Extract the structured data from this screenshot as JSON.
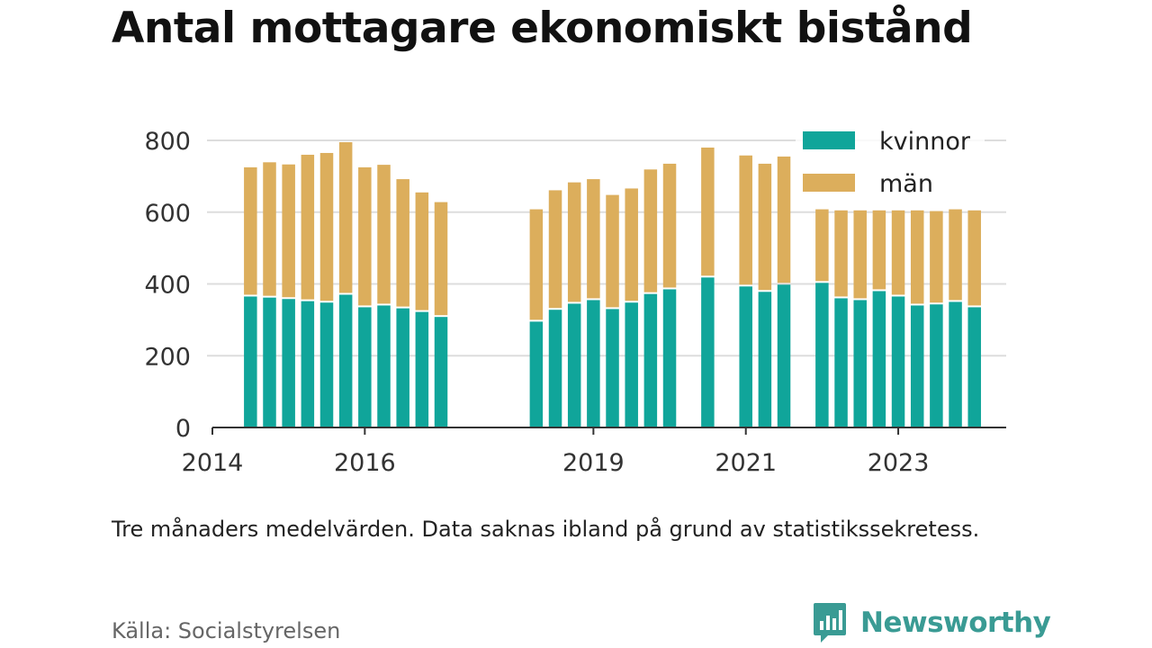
{
  "title": "Antal mottagare ekonomiskt bistånd",
  "note": "Tre månaders medelvärden. Data saknas ibland på grund av statistikssekretess.",
  "source": "Källa: Socialstyrelsen",
  "brand": {
    "name": "Newsworthy",
    "icon": "bar-chart-speech-bubble-icon"
  },
  "colors": {
    "kvinnor": "#10a59a",
    "man": "#dcae5c",
    "grid": "#dddddd",
    "axis": "#333333"
  },
  "chart_data": {
    "type": "bar",
    "stacked": true,
    "title": "Antal mottagare ekonomiskt bistånd",
    "xlabel": "",
    "ylabel": "",
    "xlim": [
      "2014-01",
      "2024-06"
    ],
    "ylim": [
      0,
      800
    ],
    "yticks": [
      0,
      200,
      400,
      600,
      800
    ],
    "xticks": [
      "2014",
      "2016",
      "2019",
      "2021",
      "2023"
    ],
    "grid": true,
    "legend_position": "top-right",
    "x": [
      "2014-07",
      "2014-10",
      "2015-01",
      "2015-04",
      "2015-07",
      "2015-10",
      "2016-01",
      "2016-04",
      "2016-07",
      "2016-10",
      "2017-01",
      "2018-04",
      "2018-07",
      "2018-10",
      "2019-01",
      "2019-04",
      "2019-07",
      "2019-10",
      "2020-01",
      "2020-07",
      "2021-01",
      "2021-04",
      "2021-07",
      "2022-01",
      "2022-04",
      "2022-07",
      "2022-10",
      "2023-01",
      "2023-04",
      "2023-07",
      "2023-10",
      "2024-01"
    ],
    "series": [
      {
        "name": "kvinnor",
        "values": [
          365,
          362,
          358,
          352,
          348,
          370,
          335,
          340,
          332,
          322,
          308,
          295,
          328,
          345,
          355,
          330,
          348,
          372,
          385,
          418,
          393,
          378,
          398,
          403,
          360,
          355,
          380,
          365,
          340,
          343,
          350,
          335
        ]
      },
      {
        "name": "män",
        "values": [
          360,
          377,
          375,
          408,
          417,
          425,
          390,
          392,
          360,
          333,
          320,
          313,
          333,
          338,
          337,
          318,
          318,
          347,
          350,
          362,
          365,
          357,
          357,
          205,
          245,
          250,
          225,
          240,
          265,
          260,
          258,
          270
        ]
      }
    ]
  }
}
